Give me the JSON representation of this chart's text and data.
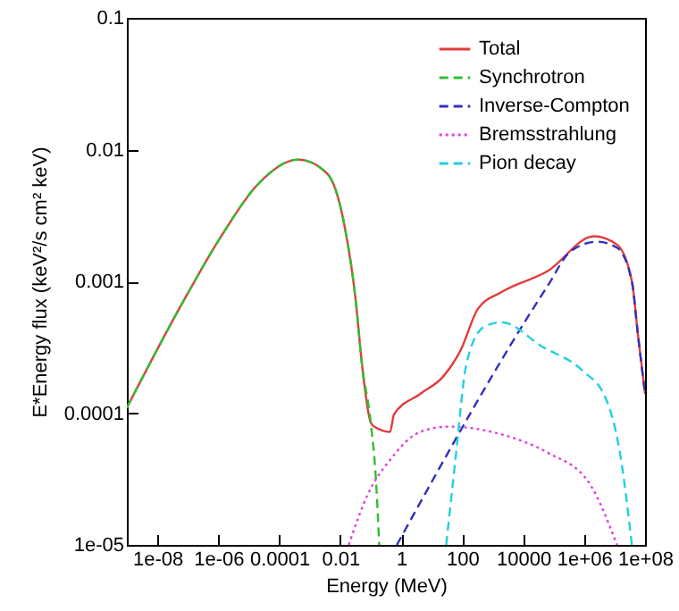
{
  "chart_data": {
    "type": "line",
    "xlabel": "Energy (MeV)",
    "ylabel": "E*Energy flux (keV²/s cm² keV)",
    "log": "xy",
    "grid": false,
    "legend": "top right",
    "marker": "none",
    "xlim": [
      1e-09,
      100000000.0
    ],
    "ylim": [
      1e-05,
      0.1
    ],
    "xticks": [
      {
        "value": 1e-08,
        "label": "1e-08"
      },
      {
        "value": 1e-06,
        "label": "1e-06"
      },
      0.0001,
      0.01,
      1,
      100,
      10000,
      {
        "value": 1000000.0,
        "label": "1e+06"
      },
      {
        "value": 100000000.0,
        "label": "1e+08"
      }
    ],
    "yticks": [
      {
        "value": 1e-05,
        "label": "1e-05"
      },
      0.0001,
      0.001,
      0.01,
      0.1
    ],
    "series": [
      {
        "name": "Total",
        "color": "#e03c3c",
        "line_style": "solid",
        "x": [
          1e-09,
          6.5e-08,
          1.4e-06,
          1.9e-05,
          0.00042,
          0.0037,
          0.014,
          0.033,
          0.051,
          0.1,
          0.13,
          0.43,
          0.58,
          4.2,
          24,
          89,
          330,
          1950,
          65000,
          2100000.0,
          12000000.0,
          37000000.0,
          58000000.0,
          100000000.0
        ],
        "values": [
          0.00011,
          0.00068,
          0.0023,
          0.0054,
          0.0084,
          0.0066,
          0.0026,
          0.00068,
          0.00024,
          8.5e-05,
          7.9e-05,
          7.2e-05,
          9.8e-05,
          0.00014,
          0.00019,
          0.0003,
          0.00062,
          0.00083,
          0.0012,
          0.0022,
          0.0019,
          0.001,
          0.0004,
          0.00014
        ]
      },
      {
        "name": "Synchrotron",
        "color": "#2fbf2f",
        "line_style": "dashed",
        "x": [
          1e-09,
          6.5e-08,
          1.4e-06,
          1.9e-05,
          0.00042,
          0.0037,
          0.014,
          0.033,
          0.051,
          0.1,
          0.15,
          0.19
        ],
        "values": [
          0.00011,
          0.00068,
          0.0023,
          0.0054,
          0.0084,
          0.0066,
          0.0026,
          0.00068,
          0.00024,
          8.5e-05,
          3e-05,
          1e-05
        ]
      },
      {
        "name": "Inverse-Compton",
        "color": "#3030c0",
        "line_style": "dashed",
        "x": [
          0.72,
          65000,
          370000,
          2700000.0,
          12000000.0,
          37000000.0,
          58000000.0,
          100000000.0
        ],
        "values": [
          1e-05,
          0.00093,
          0.0017,
          0.002,
          0.0018,
          0.001,
          0.0004,
          0.00014
        ]
      },
      {
        "name": "Bremsstrahlung",
        "color": "#e040e0",
        "line_style": "dotted",
        "x": [
          0.019,
          0.079,
          0.46,
          4.2,
          37,
          1950,
          65000,
          1400000.0,
          12000000.0
        ],
        "values": [
          1e-05,
          2.4e-05,
          4.5e-05,
          7.2e-05,
          7.9e-05,
          6.9e-05,
          5e-05,
          3e-05,
          1e-05
        ]
      },
      {
        "name": "Pion decay",
        "color": "#20d0e0",
        "line_style": "dashed",
        "x": [
          30,
          58,
          140,
          510,
          1950,
          42000,
          890000,
          5100000.0,
          15000000.0,
          37000000.0
        ],
        "values": [
          1e-05,
          4.1e-05,
          0.00024,
          0.00045,
          0.00049,
          0.00032,
          0.00021,
          0.00013,
          5e-05,
          1e-05
        ]
      }
    ]
  }
}
